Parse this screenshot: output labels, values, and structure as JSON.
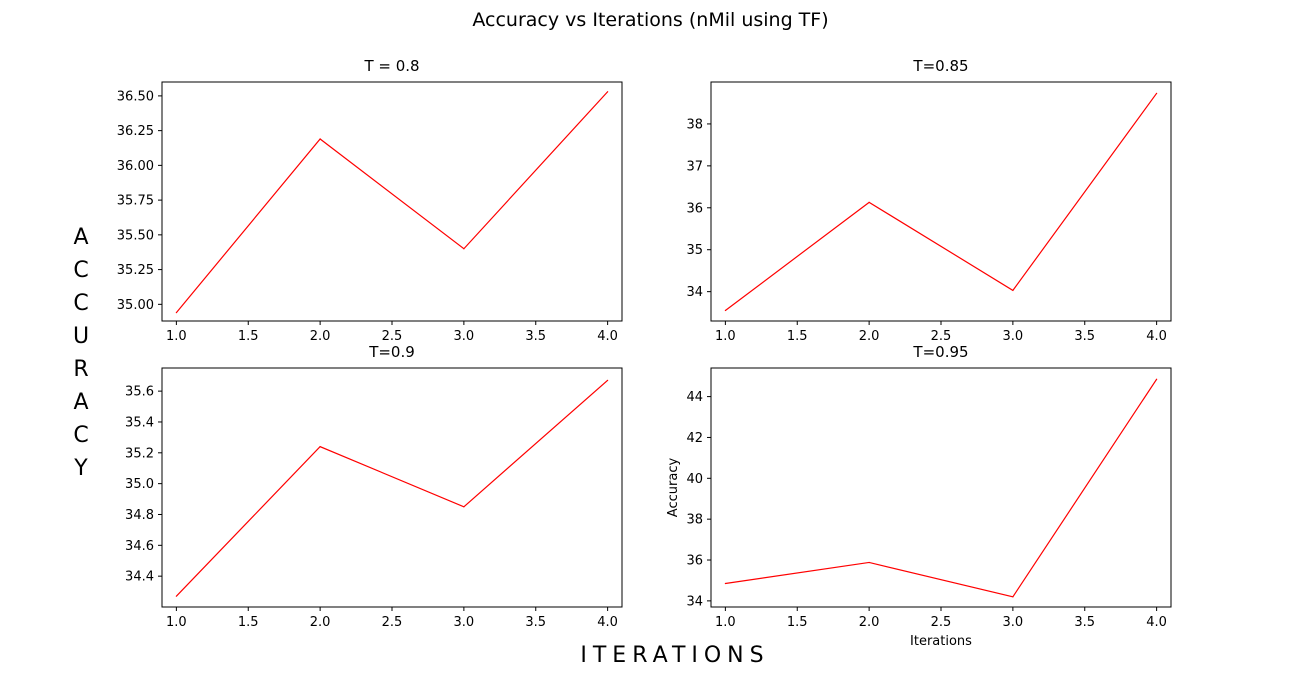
{
  "figure": {
    "title": "Accuracy vs Iterations (nMil using TF)",
    "ylabel_letters": [
      "A",
      "C",
      "C",
      "U",
      "R",
      "A",
      "C",
      "Y"
    ],
    "xlabel": "ITERATIONS",
    "line_color": "#ff0000"
  },
  "chart_data": [
    {
      "type": "line",
      "title": "T = 0.8",
      "x": [
        1.0,
        2.0,
        3.0,
        4.0
      ],
      "series": [
        {
          "values": [
            34.94,
            36.19,
            35.4,
            36.53
          ]
        }
      ],
      "xlim": [
        0.9,
        4.1
      ],
      "ylim": [
        34.88,
        36.6
      ],
      "xticks": [
        1.0,
        1.5,
        2.0,
        2.5,
        3.0,
        3.5,
        4.0
      ],
      "xtick_labels": [
        "1.0",
        "1.5",
        "2.0",
        "2.5",
        "3.0",
        "3.5",
        "4.0"
      ],
      "yticks": [
        35.0,
        35.25,
        35.5,
        35.75,
        36.0,
        36.25,
        36.5
      ],
      "ytick_labels": [
        "35.00",
        "35.25",
        "35.50",
        "35.75",
        "36.00",
        "36.25",
        "36.50"
      ],
      "xlabel": "",
      "ylabel": "",
      "grid": false
    },
    {
      "type": "line",
      "title": "T=0.85",
      "x": [
        1.0,
        2.0,
        3.0,
        4.0
      ],
      "series": [
        {
          "values": [
            33.55,
            36.13,
            34.03,
            38.73
          ]
        }
      ],
      "xlim": [
        0.9,
        4.1
      ],
      "ylim": [
        33.3,
        39.0
      ],
      "xticks": [
        1.0,
        1.5,
        2.0,
        2.5,
        3.0,
        3.5,
        4.0
      ],
      "xtick_labels": [
        "1.0",
        "1.5",
        "2.0",
        "2.5",
        "3.0",
        "3.5",
        "4.0"
      ],
      "yticks": [
        34,
        35,
        36,
        37,
        38
      ],
      "ytick_labels": [
        "34",
        "35",
        "36",
        "37",
        "38"
      ],
      "xlabel": "",
      "ylabel": "",
      "grid": false
    },
    {
      "type": "line",
      "title": "T=0.9",
      "x": [
        1.0,
        2.0,
        3.0,
        4.0
      ],
      "series": [
        {
          "values": [
            34.27,
            35.24,
            34.85,
            35.67
          ]
        }
      ],
      "xlim": [
        0.9,
        4.1
      ],
      "ylim": [
        34.2,
        35.75
      ],
      "xticks": [
        1.0,
        1.5,
        2.0,
        2.5,
        3.0,
        3.5,
        4.0
      ],
      "xtick_labels": [
        "1.0",
        "1.5",
        "2.0",
        "2.5",
        "3.0",
        "3.5",
        "4.0"
      ],
      "yticks": [
        34.4,
        34.6,
        34.8,
        35.0,
        35.2,
        35.4,
        35.6
      ],
      "ytick_labels": [
        "34.4",
        "34.6",
        "34.8",
        "35.0",
        "35.2",
        "35.4",
        "35.6"
      ],
      "xlabel": "",
      "ylabel": "",
      "grid": false
    },
    {
      "type": "line",
      "title": "T=0.95",
      "x": [
        1.0,
        2.0,
        3.0,
        4.0
      ],
      "series": [
        {
          "values": [
            34.85,
            35.88,
            34.2,
            44.85
          ]
        }
      ],
      "xlim": [
        0.9,
        4.1
      ],
      "ylim": [
        33.7,
        45.4
      ],
      "xticks": [
        1.0,
        1.5,
        2.0,
        2.5,
        3.0,
        3.5,
        4.0
      ],
      "xtick_labels": [
        "1.0",
        "1.5",
        "2.0",
        "2.5",
        "3.0",
        "3.5",
        "4.0"
      ],
      "yticks": [
        34,
        36,
        38,
        40,
        42,
        44
      ],
      "ytick_labels": [
        "34",
        "36",
        "38",
        "40",
        "42",
        "44"
      ],
      "xlabel": "Iterations",
      "ylabel": "Accuracy",
      "grid": false
    }
  ]
}
